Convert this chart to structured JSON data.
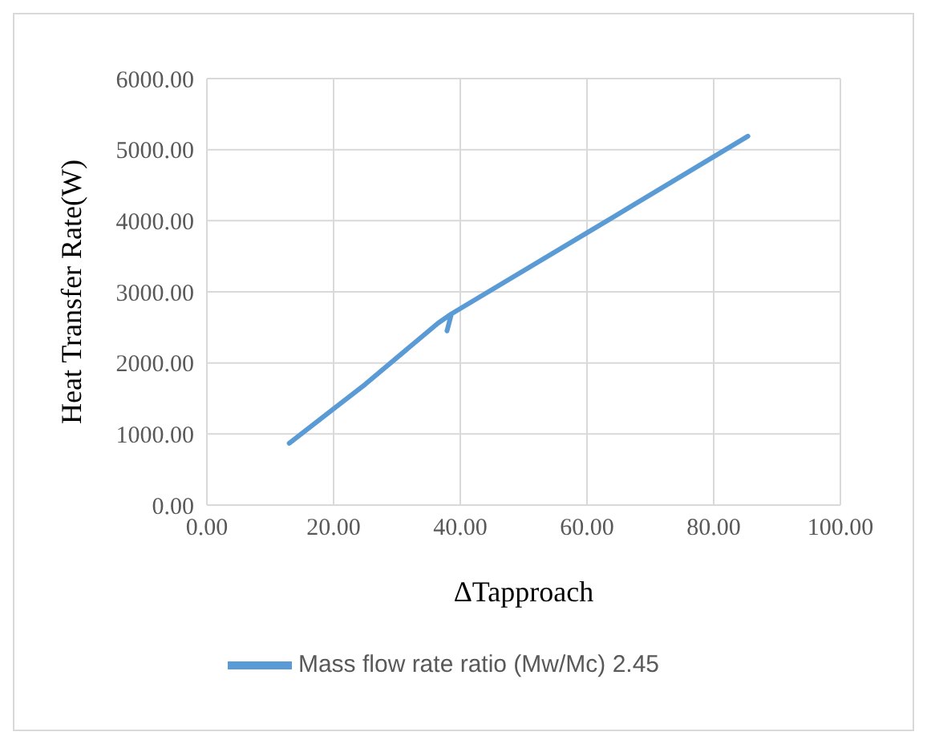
{
  "chart_data": {
    "type": "line",
    "xlabel": "ΔTapproach",
    "ylabel": "Heat Transfer Rate(W)",
    "x": [
      13,
      25,
      36.5,
      38.6,
      37.9,
      38.6,
      60,
      85.4
    ],
    "series": [
      {
        "name": "Mass flow rate ratio (Mw/Mc) 2.45",
        "color": "#5b9bd5",
        "values": [
          870,
          1700,
          2560,
          2690,
          2450,
          2690,
          3830,
          5190
        ]
      }
    ],
    "xlim": [
      0,
      100
    ],
    "xticks": [
      {
        "value": 0,
        "label": "0.00"
      },
      {
        "value": 20,
        "label": "20.00"
      },
      {
        "value": 40,
        "label": "40.00"
      },
      {
        "value": 60,
        "label": "60.00"
      },
      {
        "value": 80,
        "label": "80.00"
      },
      {
        "value": 100,
        "label": "100.00"
      }
    ],
    "ylim": [
      0,
      6000
    ],
    "yticks": [
      {
        "value": 0,
        "label": "0.00"
      },
      {
        "value": 1000,
        "label": "1000.00"
      },
      {
        "value": 2000,
        "label": "2000.00"
      },
      {
        "value": 3000,
        "label": "3000.00"
      },
      {
        "value": 4000,
        "label": "4000.00"
      },
      {
        "value": 5000,
        "label": "5000.00"
      },
      {
        "value": 6000,
        "label": "6000.00"
      }
    ],
    "grid": true,
    "legend": "bottom",
    "marker": "none",
    "line_style": "solid"
  }
}
